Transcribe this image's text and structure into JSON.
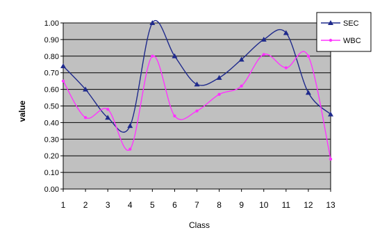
{
  "chart_data": {
    "type": "line",
    "title": "",
    "xlabel": "Class",
    "ylabel": "value",
    "x": [
      1,
      2,
      3,
      4,
      5,
      6,
      7,
      8,
      9,
      10,
      11,
      12,
      13
    ],
    "xticks": [
      "1",
      "2",
      "3",
      "4",
      "5",
      "6",
      "7",
      "8",
      "9",
      "10",
      "11",
      "12",
      "13"
    ],
    "ylim": [
      0,
      1
    ],
    "yticks": [
      "0.00",
      "0.10",
      "0.20",
      "0.30",
      "0.40",
      "0.50",
      "0.60",
      "0.70",
      "0.80",
      "0.90",
      "1.00"
    ],
    "grid": "horizontal",
    "legend_position": "right",
    "series": [
      {
        "name": "SEC",
        "color": "#1f2a8c",
        "marker": "triangle",
        "values": [
          0.74,
          0.6,
          0.43,
          0.38,
          1.0,
          0.8,
          0.63,
          0.67,
          0.78,
          0.9,
          0.94,
          0.58,
          0.45
        ]
      },
      {
        "name": "WBC",
        "color": "#ff33ff",
        "marker": "circle",
        "values": [
          0.65,
          0.43,
          0.48,
          0.24,
          0.8,
          0.44,
          0.47,
          0.57,
          0.62,
          0.81,
          0.73,
          0.8,
          0.18
        ]
      }
    ],
    "plot_background": "#c0c0c0"
  }
}
